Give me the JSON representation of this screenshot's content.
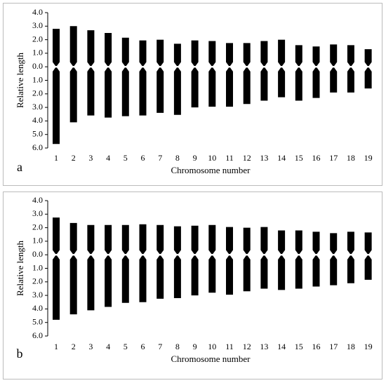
{
  "chart_data": [
    {
      "type": "idiogram",
      "panel_label": "a",
      "x_label": "Chromosome number",
      "y_label": "Relative length",
      "color": "#000000",
      "categories": [
        1,
        2,
        3,
        4,
        5,
        6,
        7,
        8,
        9,
        10,
        11,
        12,
        13,
        14,
        15,
        16,
        17,
        18,
        19
      ],
      "short_arm": [
        2.8,
        3.0,
        2.7,
        2.5,
        2.15,
        1.95,
        2.0,
        1.7,
        1.95,
        1.9,
        1.75,
        1.75,
        1.9,
        2.0,
        1.6,
        1.5,
        1.65,
        1.6,
        1.3
      ],
      "long_arm": [
        5.7,
        4.1,
        3.6,
        3.75,
        3.65,
        3.6,
        3.4,
        3.55,
        3.0,
        2.95,
        2.95,
        2.75,
        2.5,
        2.25,
        2.5,
        2.3,
        1.9,
        1.9,
        1.6
      ],
      "ylim_up": [
        0,
        4
      ],
      "ylim_down": [
        0,
        6
      ],
      "yticks_up": [
        {
          "value": 4,
          "label": "4.0"
        },
        {
          "value": 3,
          "label": "3.0"
        },
        {
          "value": 2,
          "label": "2.0"
        },
        {
          "value": 1,
          "label": "1.0"
        },
        {
          "value": 0,
          "label": "0.0"
        }
      ],
      "yticks_down": [
        {
          "value": 1,
          "label": "1.0"
        },
        {
          "value": 2,
          "label": "2.0"
        },
        {
          "value": 3,
          "label": "3.0"
        },
        {
          "value": 4,
          "label": "4.0"
        },
        {
          "value": 5,
          "label": "5.0"
        },
        {
          "value": 6,
          "label": "6.0"
        }
      ]
    },
    {
      "type": "idiogram",
      "panel_label": "b",
      "x_label": "Chromosome number",
      "y_label": "Relative length",
      "color": "#000000",
      "categories": [
        1,
        2,
        3,
        4,
        5,
        6,
        7,
        8,
        9,
        10,
        11,
        12,
        13,
        14,
        15,
        16,
        17,
        18,
        19
      ],
      "short_arm": [
        2.75,
        2.35,
        2.2,
        2.2,
        2.2,
        2.25,
        2.2,
        2.1,
        2.15,
        2.2,
        2.05,
        2.0,
        2.05,
        1.8,
        1.8,
        1.7,
        1.6,
        1.7,
        1.65
      ],
      "long_arm": [
        4.8,
        4.4,
        4.1,
        3.85,
        3.55,
        3.5,
        3.25,
        3.2,
        3.0,
        2.8,
        2.95,
        2.7,
        2.5,
        2.6,
        2.5,
        2.35,
        2.25,
        2.1,
        1.85
      ],
      "ylim_up": [
        0,
        4
      ],
      "ylim_down": [
        0,
        6
      ],
      "yticks_up": [
        {
          "value": 4,
          "label": "4.0"
        },
        {
          "value": 3,
          "label": "3.0"
        },
        {
          "value": 2,
          "label": "2.0"
        },
        {
          "value": 1,
          "label": "1.0"
        },
        {
          "value": 0,
          "label": "0.0"
        }
      ],
      "yticks_down": [
        {
          "value": 1,
          "label": "1.0"
        },
        {
          "value": 2,
          "label": "2.0"
        },
        {
          "value": 3,
          "label": "3.0"
        },
        {
          "value": 4,
          "label": "4.0"
        },
        {
          "value": 5,
          "label": "5.0"
        },
        {
          "value": 6,
          "label": "6.0"
        }
      ]
    }
  ]
}
